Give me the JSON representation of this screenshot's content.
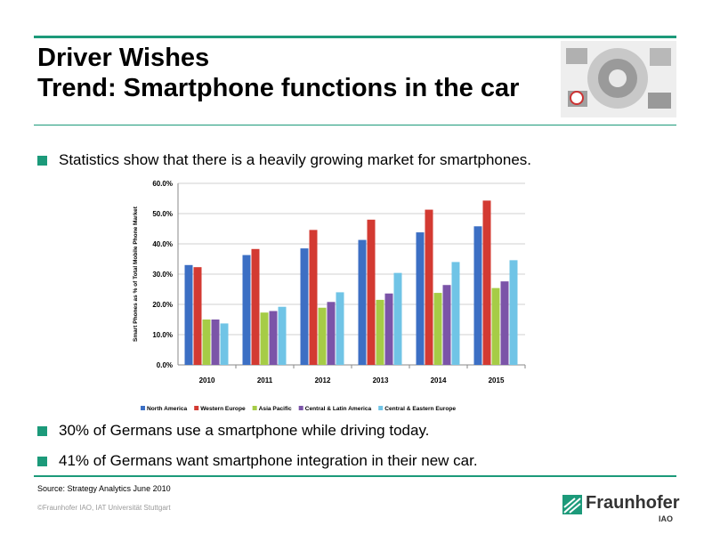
{
  "title": {
    "line1": "Driver Wishes",
    "line2": "Trend: Smartphone functions in the car"
  },
  "bullets": [
    "Statistics show that there is a heavily growing market for smartphones.",
    "30% of Germans use a smartphone while driving today.",
    "41% of Germans want smartphone integration in their new car."
  ],
  "footer": {
    "source": "Source:  Strategy Analytics June 2010",
    "copyright": "©Fraunhofer IAO, IAT Universität Stuttgart",
    "logo_name": "Fraunhofer",
    "logo_sub": "IAO"
  },
  "colors": {
    "accent": "#1c9a7a"
  },
  "chart_data": {
    "type": "bar",
    "title": "",
    "xlabel": "",
    "ylabel": "Smart Phones as % of Total Mobile Phone Market",
    "ylim": [
      0,
      60
    ],
    "yticks": [
      "0.0%",
      "10.0%",
      "20.0%",
      "30.0%",
      "40.0%",
      "50.0%",
      "60.0%"
    ],
    "grid": true,
    "legend": "bottom",
    "categories": [
      "2010",
      "2011",
      "2012",
      "2013",
      "2014",
      "2015"
    ],
    "series": [
      {
        "name": "North America",
        "color": "#3c6fc4",
        "values": [
          33.0,
          36.3,
          38.5,
          41.3,
          43.8,
          45.8
        ]
      },
      {
        "name": "Western Europe",
        "color": "#d33a32",
        "values": [
          32.3,
          38.3,
          44.6,
          48.0,
          51.3,
          54.3
        ]
      },
      {
        "name": "Asia Pacific",
        "color": "#a6cc46",
        "values": [
          15.0,
          17.3,
          18.9,
          21.5,
          23.8,
          25.4
        ]
      },
      {
        "name": "Central & Latin America",
        "color": "#7b54a8",
        "values": [
          15.0,
          17.8,
          20.8,
          23.6,
          26.4,
          27.6
        ]
      },
      {
        "name": "Central & Eastern Europe",
        "color": "#70c4e6",
        "values": [
          13.7,
          19.2,
          24.0,
          30.4,
          34.0,
          34.6
        ]
      }
    ]
  }
}
